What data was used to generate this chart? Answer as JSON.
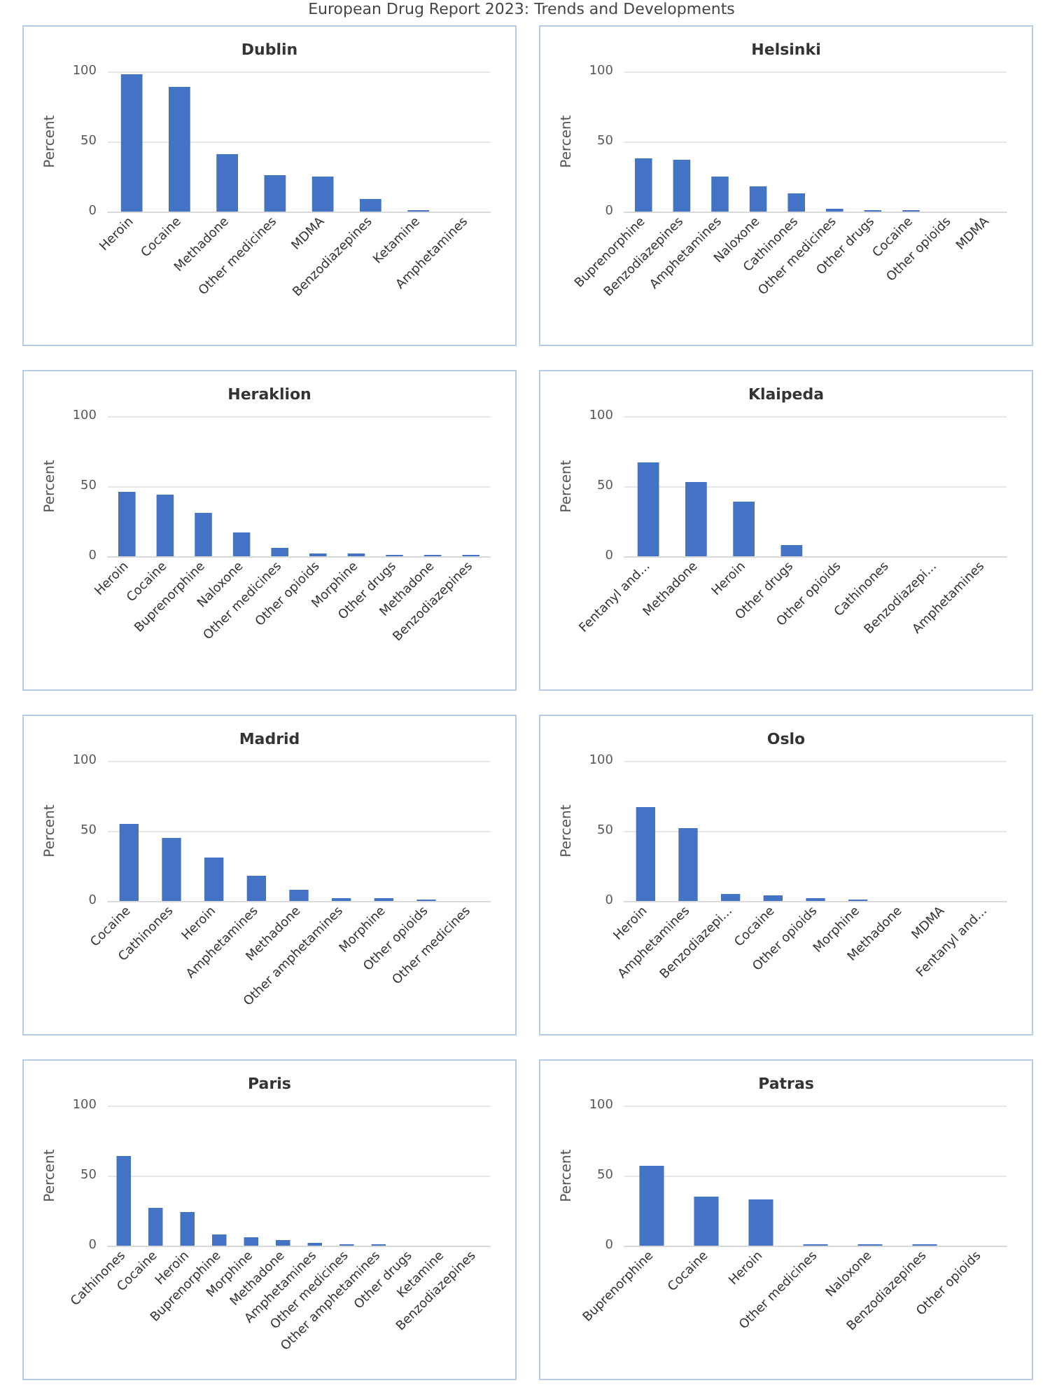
{
  "chart_data": [
    {
      "type": "bar",
      "title": "Dublin",
      "ylabel": "Percent",
      "annotations": [
        "European Drug Report 2023: Trends and Developments"
      ],
      "categories": [
        "Heroin",
        "Cocaine",
        "Methadone",
        "Other medicines",
        "MDMA",
        "Benzodiazepines",
        "Ketamine",
        "Amphetamines"
      ],
      "values": [
        98,
        89,
        41,
        26,
        25,
        9,
        1,
        0
      ],
      "color": "#4472c4",
      "ylim": [
        0,
        100
      ],
      "yticks": [
        0,
        50,
        100
      ],
      "grid": "y"
    },
    {
      "type": "bar",
      "title": "Helsinki",
      "ylabel": "Percent",
      "categories": [
        "Buprenorphine",
        "Benzodiazepines",
        "Amphetamines",
        "Naloxone",
        "Cathinones",
        "Other medicines",
        "Other drugs",
        "Cocaine",
        "Other opioids",
        "MDMA"
      ],
      "values": [
        38,
        37,
        25,
        18,
        13,
        2,
        1,
        1,
        0,
        0
      ],
      "color": "#4472c4",
      "ylim": [
        0,
        100
      ],
      "yticks": [
        0,
        50,
        100
      ],
      "grid": "y"
    },
    {
      "type": "bar",
      "title": "Heraklion",
      "ylabel": "Percent",
      "categories": [
        "Heroin",
        "Cocaine",
        "Buprenorphine",
        "Naloxone",
        "Other medicines",
        "Other opioids",
        "Morphine",
        "Other drugs",
        "Methadone",
        "Benzodiazepines"
      ],
      "values": [
        46,
        44,
        31,
        17,
        6,
        2,
        2,
        1,
        1,
        1
      ],
      "color": "#4472c4",
      "ylim": [
        0,
        100
      ],
      "yticks": [
        0,
        50,
        100
      ],
      "grid": "y"
    },
    {
      "type": "bar",
      "title": "Klaipeda",
      "ylabel": "Percent",
      "categories": [
        "Fentanyl and...",
        "Methadone",
        "Heroin",
        "Other drugs",
        "Other opioids",
        "Cathinones",
        "Benzodiazepi...",
        "Amphetamines"
      ],
      "values": [
        67,
        53,
        39,
        8,
        0,
        0,
        0,
        0
      ],
      "color": "#4472c4",
      "ylim": [
        0,
        100
      ],
      "yticks": [
        0,
        50,
        100
      ],
      "grid": "y"
    },
    {
      "type": "bar",
      "title": "Madrid",
      "ylabel": "Percent",
      "categories": [
        "Cocaine",
        "Cathinones",
        "Heroin",
        "Amphetamines",
        "Methadone",
        "Other amphetamines",
        "Morphine",
        "Other opioids",
        "Other medicines"
      ],
      "values": [
        55,
        45,
        31,
        18,
        8,
        2,
        2,
        1,
        0
      ],
      "color": "#4472c4",
      "ylim": [
        0,
        100
      ],
      "yticks": [
        0,
        50,
        100
      ],
      "grid": "y"
    },
    {
      "type": "bar",
      "title": "Oslo",
      "ylabel": "Percent",
      "categories": [
        "Heroin",
        "Amphetamines",
        "Benzodiazepi...",
        "Cocaine",
        "Other opioids",
        "Morphine",
        "Methadone",
        "MDMA",
        "Fentanyl and..."
      ],
      "values": [
        67,
        52,
        5,
        4,
        2,
        1,
        0,
        0,
        0
      ],
      "color": "#4472c4",
      "ylim": [
        0,
        100
      ],
      "yticks": [
        0,
        50,
        100
      ],
      "grid": "y"
    },
    {
      "type": "bar",
      "title": "Paris",
      "ylabel": "Percent",
      "categories": [
        "Cathinones",
        "Cocaine",
        "Heroin",
        "Buprenorphine",
        "Morphine",
        "Methadone",
        "Amphetamines",
        "Other medicines",
        "Other amphetamines",
        "Other drugs",
        "Ketamine",
        "Benzodiazepines"
      ],
      "values": [
        64,
        27,
        24,
        8,
        6,
        4,
        2,
        1,
        1,
        0,
        0,
        0
      ],
      "color": "#4472c4",
      "ylim": [
        0,
        100
      ],
      "yticks": [
        0,
        50,
        100
      ],
      "grid": "y"
    },
    {
      "type": "bar",
      "title": "Patras",
      "ylabel": "Percent",
      "categories": [
        "Buprenorphine",
        "Cocaine",
        "Heroin",
        "Other medicines",
        "Naloxone",
        "Benzodiazepines",
        "Other opioids"
      ],
      "values": [
        57,
        35,
        33,
        1,
        1,
        1,
        0
      ],
      "color": "#4472c4",
      "ylim": [
        0,
        100
      ],
      "yticks": [
        0,
        50,
        100
      ],
      "grid": "y"
    }
  ]
}
